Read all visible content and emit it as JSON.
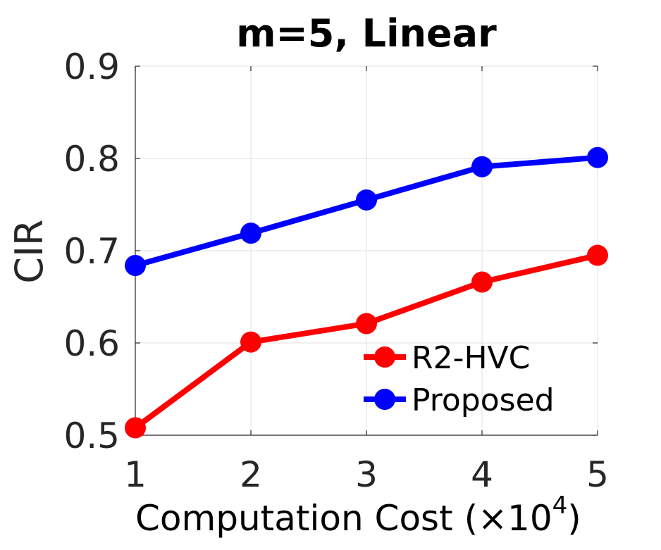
{
  "chart_data": {
    "type": "line",
    "title": "m=5, Linear",
    "xlabel": "Computation Cost (",
    "xlabel_times": "×",
    "xlabel_base": "10",
    "xlabel_exp": "4",
    "xlabel_close": ")",
    "ylabel": "CIR",
    "x": [
      1,
      2,
      3,
      4,
      5
    ],
    "xlim": [
      1,
      5
    ],
    "ylim": [
      0.5,
      0.9
    ],
    "xticks": [
      "1",
      "2",
      "3",
      "4",
      "5"
    ],
    "yticks": [
      "0.5",
      "0.6",
      "0.7",
      "0.8",
      "0.9"
    ],
    "grid": true,
    "legend_position": "bottom-right",
    "series": [
      {
        "name": "R2-HVC",
        "color": "#ff0000",
        "values": [
          0.508,
          0.601,
          0.621,
          0.666,
          0.695
        ]
      },
      {
        "name": "Proposed",
        "color": "#0000ff",
        "values": [
          0.684,
          0.719,
          0.755,
          0.791,
          0.801
        ]
      }
    ]
  }
}
